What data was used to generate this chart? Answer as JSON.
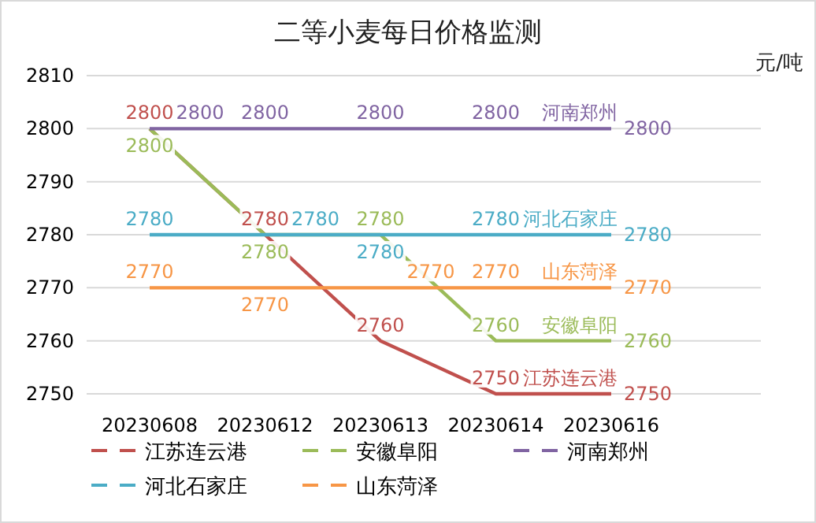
{
  "chart_data": {
    "type": "line",
    "title": "二等小麦每日价格监测",
    "ylabel": "元/吨",
    "categories": [
      "20230608",
      "20230612",
      "20230613",
      "20230614",
      "20230616"
    ],
    "series": [
      {
        "name": "江苏连云港",
        "color": "#c0504d",
        "values": [
          2800,
          2780,
          2760,
          2750,
          2750
        ]
      },
      {
        "name": "安徽阜阳",
        "color": "#9bbb59",
        "values": [
          2800,
          2780,
          2780,
          2760,
          2760
        ]
      },
      {
        "name": "河南郑州",
        "color": "#8064a2",
        "values": [
          2800,
          2800,
          2800,
          2800,
          2800
        ]
      },
      {
        "name": "河北石家庄",
        "color": "#4bacc6",
        "values": [
          2780,
          2780,
          2780,
          2780,
          2780
        ]
      },
      {
        "name": "山东菏泽",
        "color": "#f79646",
        "values": [
          2770,
          2770,
          2770,
          2770,
          2770
        ]
      }
    ],
    "ylim": [
      2750,
      2810
    ],
    "yticks": [
      2750,
      2760,
      2770,
      2780,
      2790,
      2800,
      2810
    ],
    "grid": "y",
    "data_labels": true,
    "legend": "bottom",
    "marker": "none",
    "line_style": "solid"
  }
}
